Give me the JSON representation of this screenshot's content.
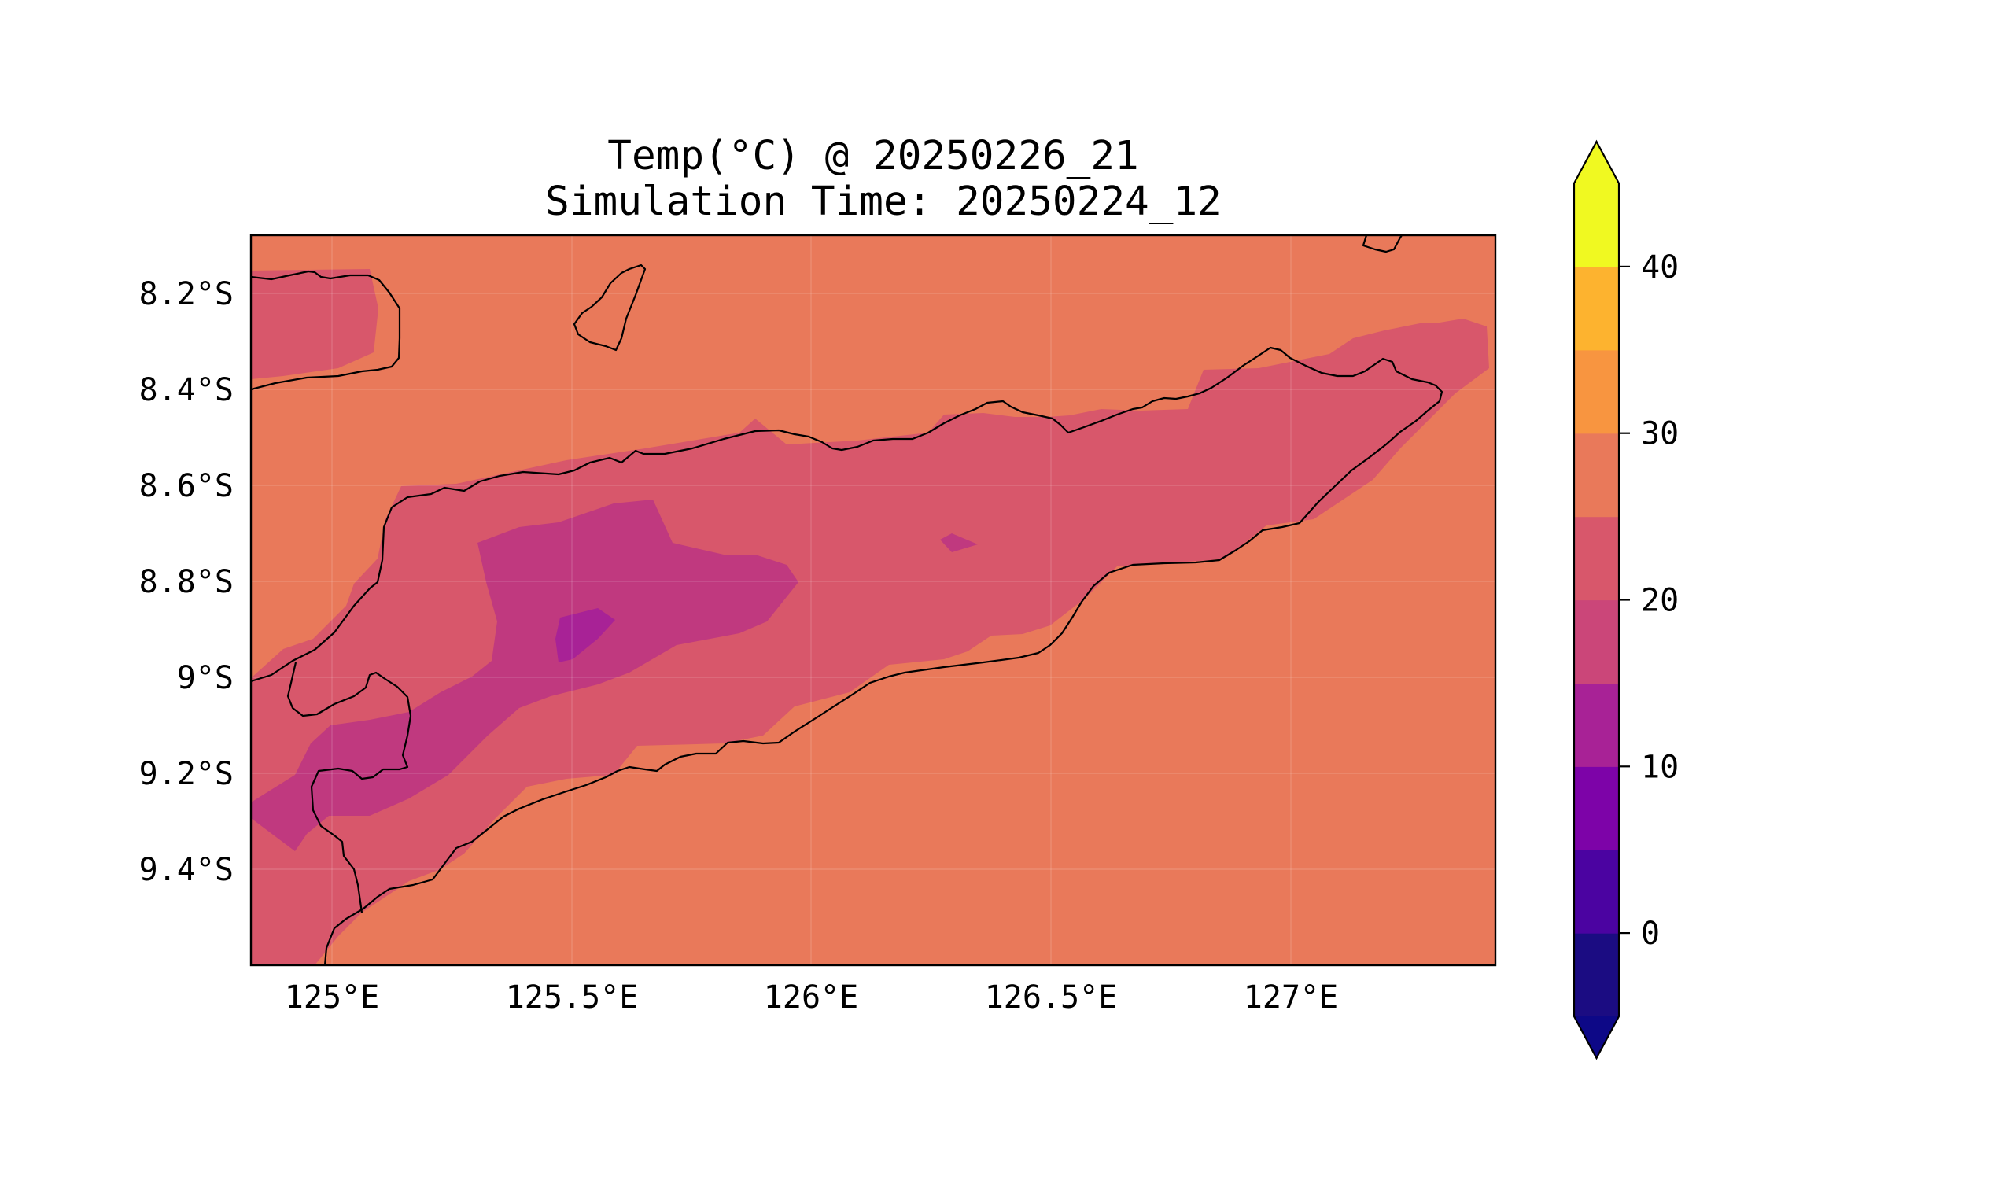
{
  "title": {
    "line1": "Temp(°C) @ 20250226_21",
    "line2": "Simulation Time: 20250224_12"
  },
  "map": {
    "region": "Timor island",
    "lon_ticks": [
      "125°E",
      "125.5°E",
      "126°E",
      "126.5°E",
      "127°E"
    ],
    "lat_ticks": [
      "8.2°S",
      "8.4°S",
      "8.6°S",
      "8.8°S",
      "9°S",
      "9.2°S",
      "9.4°S"
    ],
    "lon_range": [
      124.83,
      127.42
    ],
    "lat_range": [
      -9.6,
      -8.08
    ],
    "grid": true,
    "coastlines": true
  },
  "colorbar": {
    "ticks": [
      "0",
      "10",
      "20",
      "30",
      "40"
    ],
    "levels": [
      -5,
      0,
      5,
      10,
      15,
      20,
      25,
      30,
      35,
      40,
      45
    ],
    "colors": [
      "#1b0c82",
      "#4b03a1",
      "#7d03a8",
      "#a82296",
      "#cb4679",
      "#d8576b",
      "#e9795a",
      "#f89540",
      "#fdb32f",
      "#f0f921"
    ],
    "under_color": "#0d0887",
    "over_color": "#f0f921",
    "extend": "both",
    "colormap": "plasma"
  },
  "field_colors": {
    "ocean_range_25_30": "#e9795a",
    "range_20_25": "#d8576b",
    "range_15_20": "#c0397f",
    "range_10_15": "#a82296"
  }
}
